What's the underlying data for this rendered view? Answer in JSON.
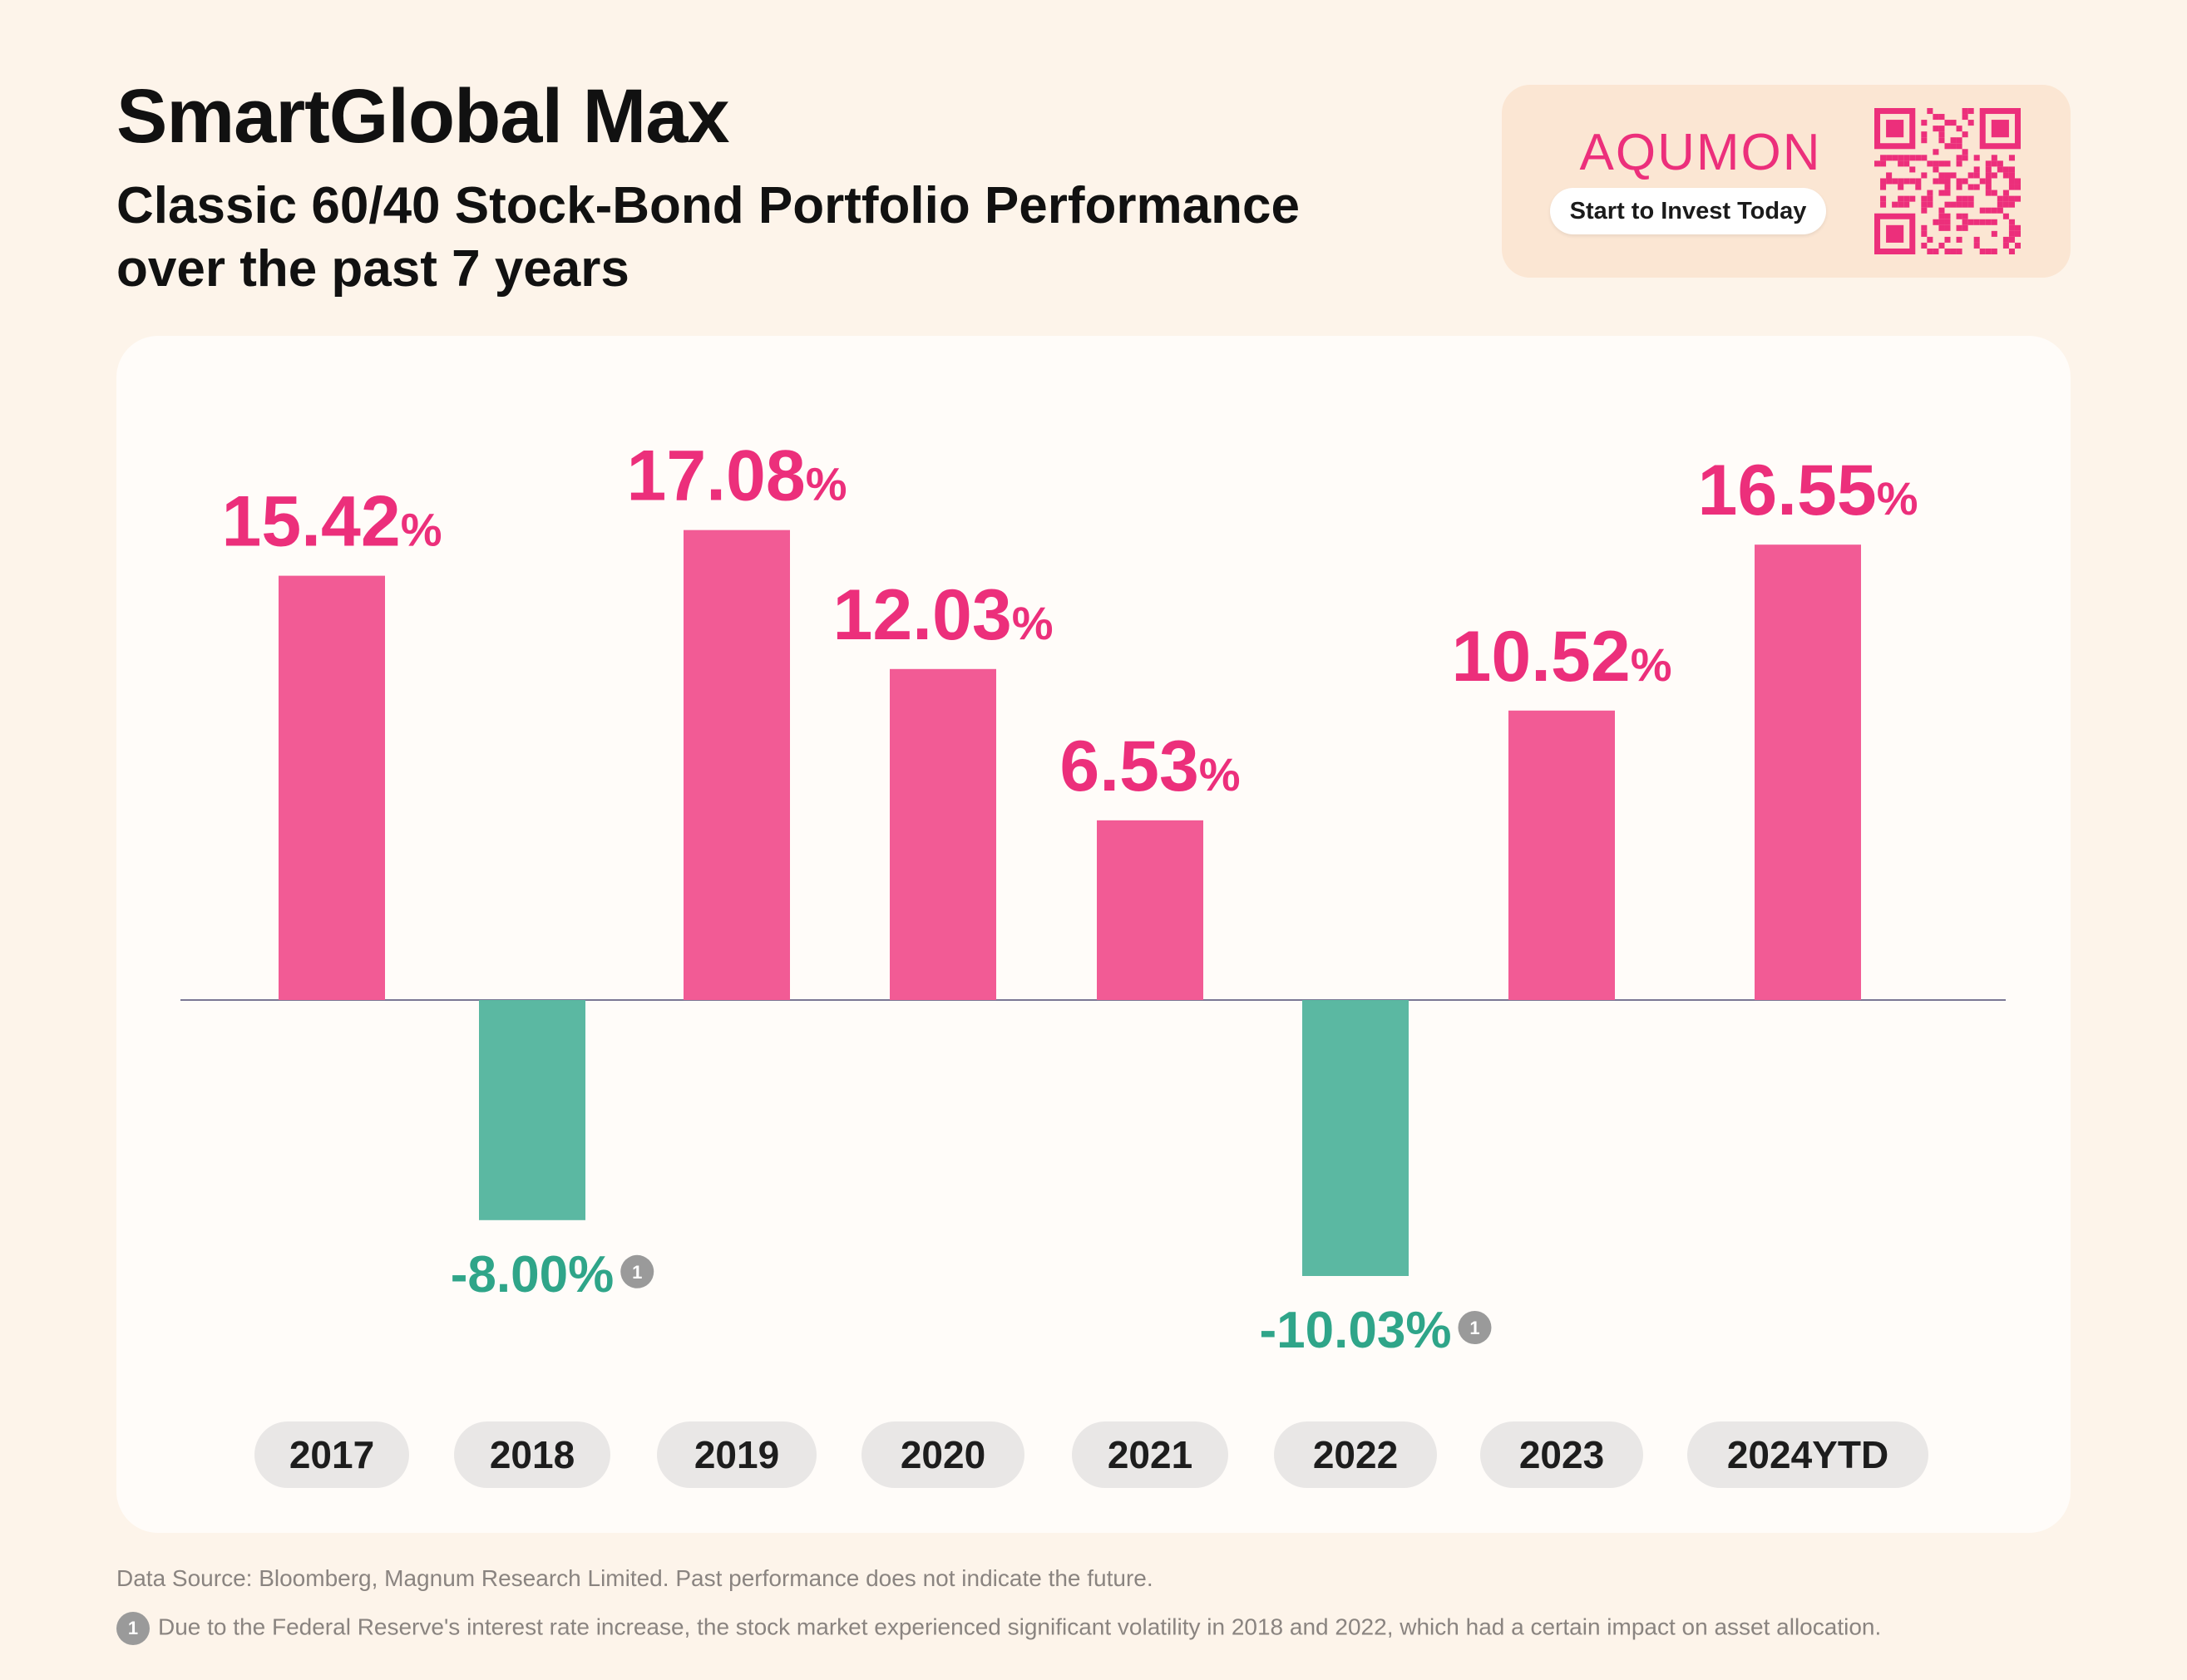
{
  "header": {
    "title": "SmartGlobal Max",
    "subtitle_line1": "Classic 60/40 Stock-Bond Portfolio Performance",
    "subtitle_line2": "over the past 7 years"
  },
  "promo": {
    "brand": "AQUMON",
    "cta_label": "Start to Invest Today",
    "qr_icon": "qr-code-icon"
  },
  "colors": {
    "positive": "#f25b95",
    "positive_label": "#ec2f7b",
    "negative": "#5bb8a2",
    "negative_label": "#2fa589",
    "baseline": "#7b7794",
    "year_pill": "#e9e7e6",
    "note_badge": "#9a9a9a"
  },
  "chart_data": {
    "type": "bar",
    "categories": [
      "2017",
      "2018",
      "2019",
      "2020",
      "2021",
      "2022",
      "2023",
      "2024YTD"
    ],
    "values": [
      15.42,
      -8.0,
      17.08,
      12.03,
      6.53,
      -10.03,
      10.52,
      16.55
    ],
    "value_labels": [
      "15.42",
      "-8.00",
      "17.08",
      "12.03",
      "6.53",
      "-10.03",
      "10.52",
      "16.55"
    ],
    "unit": "%",
    "footnote_marker": "1",
    "footnote_on": [
      "2018",
      "2022"
    ],
    "title": "",
    "xlabel": "",
    "ylabel": "",
    "ylim": [
      -10.03,
      17.08
    ]
  },
  "footer": {
    "source": "Data Source: Bloomberg, Magnum Research Limited.  Past performance does not indicate the future.",
    "note_marker": "1",
    "note": "Due to the Federal Reserve's interest rate increase, the stock market experienced significant volatility in 2018 and 2022, which had a certain impact on asset allocation."
  }
}
